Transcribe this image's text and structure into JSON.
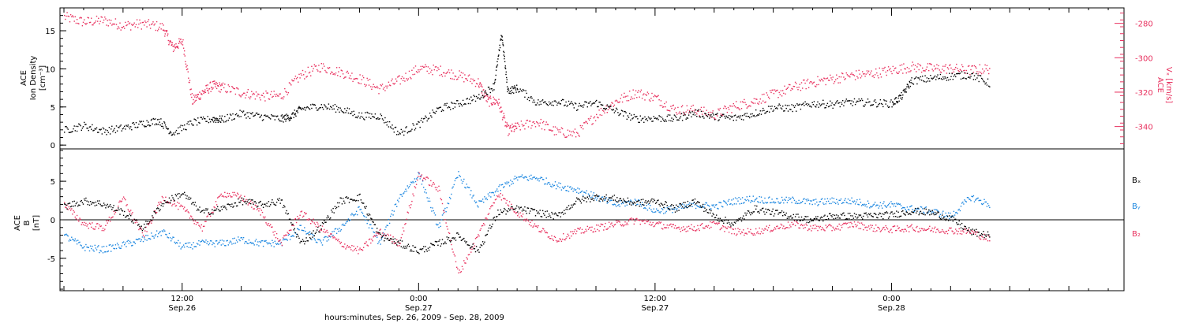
{
  "colors": {
    "black": "#000000",
    "red": "#e8305e",
    "blue": "#1a86e0"
  },
  "xaxis": {
    "title": "hours:minutes, Sep. 26, 2009 - Sep. 28, 2009",
    "ticks": [
      {
        "time": "12:00",
        "date": "Sep.26",
        "hours": 12
      },
      {
        "time": "0:00",
        "date": "Sep.27",
        "hours": 24
      },
      {
        "time": "12:00",
        "date": "Sep.27",
        "hours": 36
      },
      {
        "time": "0:00",
        "date": "Sep.28",
        "hours": 48
      }
    ]
  },
  "chart_data": [
    {
      "type": "scatter",
      "panel": "top",
      "x_units": "hours since Sep.26 0:00",
      "xlim": [
        5.8,
        59.8
      ],
      "left_axis": {
        "label_lines": [
          "ACE",
          "Ion Density",
          "[cm⁻³]"
        ],
        "ylim": [
          -0.5,
          18
        ],
        "ticks": [
          "0",
          "5",
          "10",
          "15"
        ],
        "tick_values": [
          0,
          5,
          10,
          15
        ]
      },
      "right_axis": {
        "label_lines": [
          "ACE",
          "Vₓ [km/s]"
        ],
        "ylim": [
          -353,
          -271
        ],
        "ticks": [
          "-280",
          "-300",
          "-320",
          "-340"
        ],
        "tick_values": [
          -280,
          -300,
          -320,
          -340
        ]
      },
      "series": [
        {
          "color": "black",
          "axis": "left",
          "points": [
            [
              6,
              2
            ],
            [
              7,
              2.6
            ],
            [
              8,
              1.9
            ],
            [
              9,
              2.3
            ],
            [
              10,
              2.9
            ],
            [
              10.8,
              3.3
            ],
            [
              11.5,
              1.6
            ],
            [
              12.5,
              3
            ],
            [
              13.5,
              3.5
            ],
            [
              14,
              3.4
            ],
            [
              15,
              4.2
            ],
            [
              16,
              3.8
            ],
            [
              17,
              3.5
            ],
            [
              17.5,
              3.8
            ],
            [
              18,
              4.8
            ],
            [
              19,
              5.2
            ],
            [
              20,
              4.8
            ],
            [
              21,
              3.9
            ],
            [
              22,
              3.9
            ],
            [
              23,
              1.6
            ],
            [
              24,
              2.8
            ],
            [
              25,
              4.8
            ],
            [
              26,
              5.5
            ],
            [
              27,
              6.3
            ],
            [
              27.8,
              7.8
            ],
            [
              28.2,
              14.6
            ],
            [
              28.5,
              7.2
            ],
            [
              29,
              7.5
            ],
            [
              30,
              5.6
            ],
            [
              31,
              5.8
            ],
            [
              32,
              5.1
            ],
            [
              33,
              5.6
            ],
            [
              34,
              4.5
            ],
            [
              35,
              3.5
            ],
            [
              36,
              3.6
            ],
            [
              37,
              3.5
            ],
            [
              38,
              4.3
            ],
            [
              39,
              3.8
            ],
            [
              40,
              3.6
            ],
            [
              41,
              4.2
            ],
            [
              42,
              5
            ],
            [
              43,
              4.9
            ],
            [
              44,
              5.5
            ],
            [
              45,
              5.4
            ],
            [
              46,
              5.7
            ],
            [
              47,
              5.6
            ],
            [
              48,
              5.5
            ],
            [
              48.5,
              6.5
            ],
            [
              49,
              8.5
            ],
            [
              50,
              8.8
            ],
            [
              51,
              9.1
            ],
            [
              52,
              9.3
            ],
            [
              53,
              8.1
            ]
          ]
        },
        {
          "color": "red",
          "axis": "right",
          "points": [
            [
              6,
              -276
            ],
            [
              7,
              -279
            ],
            [
              8,
              -278
            ],
            [
              9,
              -281
            ],
            [
              10,
              -280
            ],
            [
              11,
              -282
            ],
            [
              11.5,
              -294
            ],
            [
              12,
              -290
            ],
            [
              12.5,
              -325
            ],
            [
              13,
              -320
            ],
            [
              13.5,
              -316
            ],
            [
              14,
              -317
            ],
            [
              15,
              -320
            ],
            [
              16,
              -322
            ],
            [
              17,
              -322
            ],
            [
              18,
              -310
            ],
            [
              19,
              -305
            ],
            [
              20,
              -308
            ],
            [
              21,
              -312
            ],
            [
              22,
              -318
            ],
            [
              23,
              -313
            ],
            [
              24,
              -306
            ],
            [
              25,
              -307
            ],
            [
              26,
              -310
            ],
            [
              27,
              -314
            ],
            [
              27.5,
              -325
            ],
            [
              28,
              -325
            ],
            [
              28.5,
              -342
            ],
            [
              29,
              -340
            ],
            [
              30,
              -337
            ],
            [
              31,
              -343
            ],
            [
              32,
              -344
            ],
            [
              33,
              -333
            ],
            [
              34,
              -325
            ],
            [
              35,
              -320
            ],
            [
              36,
              -323
            ],
            [
              37,
              -330
            ],
            [
              38,
              -330
            ],
            [
              39,
              -333
            ],
            [
              40,
              -328
            ],
            [
              41,
              -325
            ],
            [
              42,
              -321
            ],
            [
              43,
              -317
            ],
            [
              44,
              -314
            ],
            [
              45,
              -312
            ],
            [
              46,
              -310
            ],
            [
              47,
              -309
            ],
            [
              48,
              -307
            ],
            [
              49,
              -305
            ],
            [
              50,
              -306
            ],
            [
              51,
              -306
            ],
            [
              52,
              -307
            ],
            [
              53,
              -306
            ]
          ]
        }
      ]
    },
    {
      "type": "scatter",
      "panel": "bottom",
      "x_units": "hours since Sep.26 0:00",
      "xlim": [
        5.8,
        59.8
      ],
      "y_axis": {
        "label_lines": [
          "ACE",
          "B",
          "[nT]"
        ],
        "ylim": [
          -9.2,
          9.2
        ],
        "ticks": [
          "5",
          "0",
          "-5"
        ],
        "tick_values": [
          5,
          0,
          -5
        ]
      },
      "legend": {
        "placement": "right",
        "entries": [
          "Bₓ",
          "Bᵧ",
          "B₂"
        ]
      },
      "series": [
        {
          "name": "Bₓ",
          "color": "black",
          "points": [
            [
              6,
              1.8
            ],
            [
              7,
              2.5
            ],
            [
              8,
              2.1
            ],
            [
              9,
              1
            ],
            [
              10,
              -1
            ],
            [
              11,
              2.2
            ],
            [
              12,
              3.5
            ],
            [
              13,
              1
            ],
            [
              14,
              1.5
            ],
            [
              15,
              2.5
            ],
            [
              16,
              2
            ],
            [
              17,
              2.5
            ],
            [
              18,
              -3
            ],
            [
              19,
              -1
            ],
            [
              20,
              2.5
            ],
            [
              21,
              3
            ],
            [
              22,
              -2
            ],
            [
              23,
              -3
            ],
            [
              24,
              -4
            ],
            [
              25,
              -3
            ],
            [
              26,
              -2
            ],
            [
              27,
              -4
            ],
            [
              28,
              1
            ],
            [
              29,
              1.5
            ],
            [
              30,
              1
            ],
            [
              31,
              0.5
            ],
            [
              32,
              2.5
            ],
            [
              33,
              3
            ],
            [
              34,
              2.8
            ],
            [
              35,
              2.2
            ],
            [
              36,
              2.5
            ],
            [
              37,
              1.5
            ],
            [
              38,
              2.5
            ],
            [
              39,
              0.5
            ],
            [
              40,
              -0.5
            ],
            [
              41,
              1.5
            ],
            [
              42,
              1
            ],
            [
              43,
              0.5
            ],
            [
              44,
              0
            ],
            [
              45,
              0.6
            ],
            [
              46,
              0.5
            ],
            [
              47,
              0.6
            ],
            [
              48,
              0.7
            ],
            [
              49,
              1.2
            ],
            [
              50,
              1
            ],
            [
              51,
              0.2
            ],
            [
              52,
              -1.5
            ],
            [
              53,
              -2
            ]
          ]
        },
        {
          "name": "Bᵧ",
          "color": "blue",
          "points": [
            [
              6,
              -2
            ],
            [
              7,
              -3.5
            ],
            [
              8,
              -3.8
            ],
            [
              9,
              -3.2
            ],
            [
              10,
              -2.5
            ],
            [
              11,
              -1.5
            ],
            [
              12,
              -3.5
            ],
            [
              13,
              -3
            ],
            [
              14,
              -3
            ],
            [
              15,
              -2.5
            ],
            [
              16,
              -3
            ],
            [
              17,
              -3
            ],
            [
              18,
              -1
            ],
            [
              19,
              -3
            ],
            [
              20,
              -1
            ],
            [
              21,
              1.5
            ],
            [
              22,
              -3
            ],
            [
              23,
              3
            ],
            [
              24,
              6
            ],
            [
              25,
              -1
            ],
            [
              26,
              6
            ],
            [
              27,
              2
            ],
            [
              28,
              4
            ],
            [
              29,
              5.5
            ],
            [
              30,
              5.5
            ],
            [
              31,
              4.5
            ],
            [
              32,
              4
            ],
            [
              33,
              3
            ],
            [
              34,
              2
            ],
            [
              35,
              2.5
            ],
            [
              36,
              1.2
            ],
            [
              37,
              1.5
            ],
            [
              38,
              2
            ],
            [
              39,
              1.8
            ],
            [
              40,
              2.5
            ],
            [
              41,
              2.8
            ],
            [
              42,
              2.5
            ],
            [
              43,
              2.6
            ],
            [
              44,
              2.3
            ],
            [
              45,
              2.5
            ],
            [
              46,
              2.5
            ],
            [
              47,
              2
            ],
            [
              48,
              2
            ],
            [
              49,
              1.5
            ],
            [
              50,
              1.2
            ],
            [
              51,
              0.5
            ],
            [
              52,
              3
            ],
            [
              53,
              2
            ]
          ]
        },
        {
          "name": "B₂",
          "color": "red",
          "points": [
            [
              6,
              2
            ],
            [
              7,
              -0.5
            ],
            [
              8,
              -1
            ],
            [
              9,
              2.8
            ],
            [
              10,
              -2
            ],
            [
              11,
              3
            ],
            [
              12,
              1.5
            ],
            [
              13,
              -1
            ],
            [
              14,
              3.5
            ],
            [
              15,
              3
            ],
            [
              16,
              1
            ],
            [
              17,
              -3
            ],
            [
              18,
              1
            ],
            [
              19,
              -1
            ],
            [
              20,
              -3
            ],
            [
              21,
              -4
            ],
            [
              22,
              -1.5
            ],
            [
              23,
              -3
            ],
            [
              24,
              6
            ],
            [
              25,
              4
            ],
            [
              26,
              -7
            ],
            [
              27,
              -2
            ],
            [
              28,
              3.5
            ],
            [
              29,
              1
            ],
            [
              30,
              -1
            ],
            [
              31,
              -2.5
            ],
            [
              32,
              -1.5
            ],
            [
              33,
              -1
            ],
            [
              34,
              -0.5
            ],
            [
              35,
              0
            ],
            [
              36,
              -0.5
            ],
            [
              37,
              -1
            ],
            [
              38,
              -1
            ],
            [
              39,
              -0.5
            ],
            [
              40,
              -1.5
            ],
            [
              41,
              -1.5
            ],
            [
              42,
              -1
            ],
            [
              43,
              -0.5
            ],
            [
              44,
              -1
            ],
            [
              45,
              -1
            ],
            [
              46,
              -0.5
            ],
            [
              47,
              -1
            ],
            [
              48,
              -1.2
            ],
            [
              49,
              -1
            ],
            [
              50,
              -1.2
            ],
            [
              51,
              -1.3
            ],
            [
              52,
              -1.5
            ],
            [
              53,
              -2.5
            ]
          ]
        }
      ]
    }
  ]
}
